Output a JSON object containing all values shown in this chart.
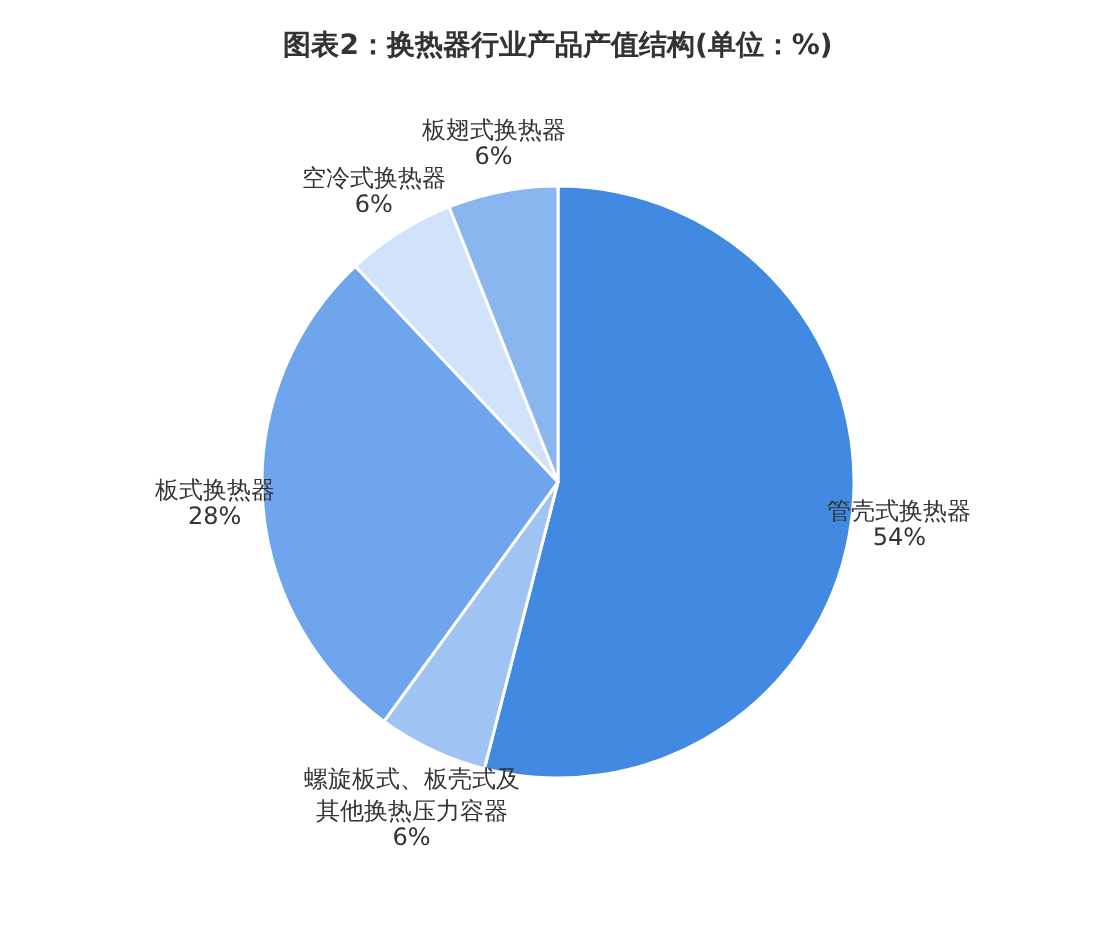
{
  "chart_data": {
    "type": "pie",
    "title": "图表2：换热器行业产品产值结构(单位：%)",
    "categories": [
      "管壳式换热器",
      "螺旋板式、板壳式及其他换热压力容器",
      "板式换热器",
      "空冷式换热器",
      "板翅式换热器"
    ],
    "values": [
      54,
      6,
      28,
      6,
      6
    ],
    "value_labels": [
      "54%",
      "6%",
      "28%",
      "6%",
      "6%"
    ],
    "colors": [
      "#4289e2",
      "#9fc4f3",
      "#6ea5ec",
      "#d0e3fb",
      "#8ab6ef"
    ]
  }
}
